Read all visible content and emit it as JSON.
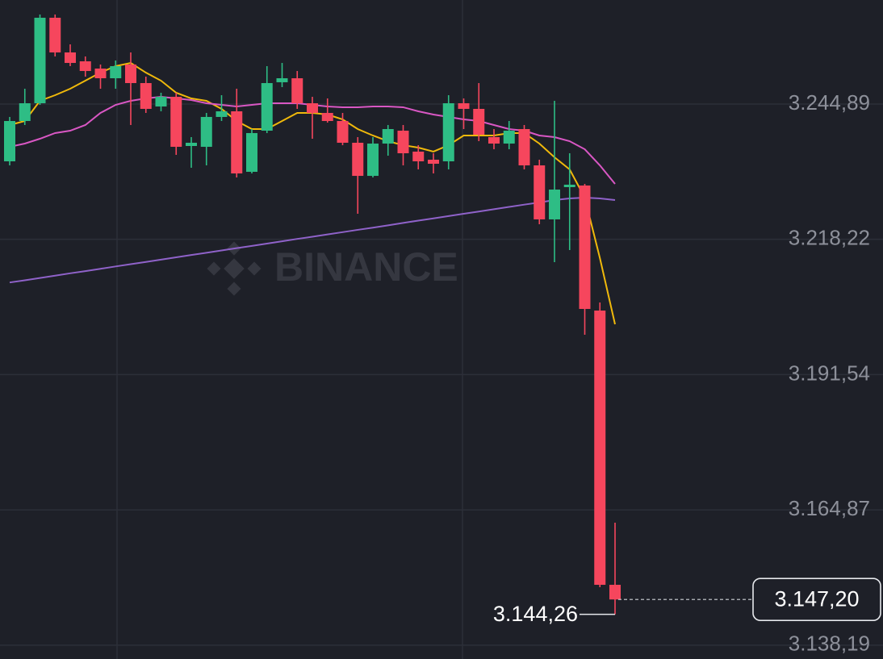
{
  "chart_data": {
    "type": "candlestick",
    "watermark": "BINANCE",
    "up_color": "#2ebd85",
    "down_color": "#f6465d",
    "grid": true,
    "ylim": [
      3135.46,
      3265.41
    ],
    "yticks": [
      {
        "value": 3244.89,
        "label": "3.244,89"
      },
      {
        "value": 3218.22,
        "label": "3.218,22"
      },
      {
        "value": 3191.54,
        "label": "3.191,54"
      },
      {
        "value": 3164.87,
        "label": "3.164,87"
      },
      {
        "value": 3138.19,
        "label": "3.138,19"
      }
    ],
    "candles": {
      "open": [
        3233.6,
        3241.55,
        3245.05,
        3261.91,
        3255.07,
        3253.32,
        3251.89,
        3249.98,
        3252.69,
        3249.03,
        3244.41,
        3246.32,
        3236.62,
        3236.46,
        3242.35,
        3243.46,
        3231.53,
        3239.64,
        3249.19,
        3249.98,
        3245.05,
        3243.14,
        3241.55,
        3237.26,
        3230.73,
        3237.1,
        3239.64,
        3235.51,
        3233.92,
        3233.6,
        3245.05,
        3243.94,
        3238.37,
        3237.1,
        3239.96,
        3232.8,
        3222.15,
        3228.51,
        3228.83,
        3204.17,
        3150.09
      ],
      "high": [
        3242.35,
        3247.91,
        3262.55,
        3262.55,
        3256.66,
        3254.28,
        3252.69,
        3253.48,
        3255.07,
        3250.3,
        3247.12,
        3247.12,
        3238.37,
        3243.14,
        3246.64,
        3247.91,
        3239.96,
        3252.37,
        3253.0,
        3251.41,
        3246.32,
        3246.0,
        3243.14,
        3238.37,
        3238.37,
        3240.76,
        3240.76,
        3236.78,
        3235.19,
        3246.64,
        3246.0,
        3249.03,
        3239.96,
        3241.55,
        3240.76,
        3233.92,
        3245.53,
        3235.19,
        3229.14,
        3205.76,
        3162.34
      ],
      "low": [
        3232.8,
        3240.76,
        3244.73,
        3254.28,
        3252.37,
        3250.3,
        3247.91,
        3247.91,
        3240.76,
        3243.14,
        3243.46,
        3234.87,
        3232.33,
        3232.8,
        3241.55,
        3230.42,
        3231.21,
        3239.17,
        3248.23,
        3243.94,
        3238.05,
        3241.23,
        3236.78,
        3223.26,
        3230.42,
        3234.71,
        3232.8,
        3232.01,
        3231.21,
        3232.01,
        3239.96,
        3237.57,
        3235.98,
        3235.98,
        3232.01,
        3221.19,
        3213.72,
        3216.1,
        3199.4,
        3149.61,
        3144.26
      ],
      "close": [
        3241.55,
        3245.05,
        3261.91,
        3255.07,
        3253.0,
        3251.41,
        3249.98,
        3252.37,
        3249.03,
        3243.94,
        3246.32,
        3236.46,
        3237.26,
        3242.35,
        3243.46,
        3231.21,
        3239.17,
        3249.03,
        3249.98,
        3245.05,
        3243.14,
        3241.55,
        3237.26,
        3230.73,
        3237.1,
        3239.96,
        3235.19,
        3233.6,
        3233.12,
        3245.05,
        3243.94,
        3238.85,
        3237.1,
        3239.64,
        3232.8,
        3222.15,
        3228.03,
        3228.99,
        3204.49,
        3150.09,
        3147.2
      ]
    },
    "moving_averages": [
      {
        "color": "#f0b90b",
        "values": [
          3240.76,
          3241.55,
          3245.53,
          3246.64,
          3247.91,
          3249.5,
          3251.09,
          3252.37,
          3253.0,
          3251.09,
          3249.5,
          3247.12,
          3246.0,
          3245.53,
          3243.94,
          3241.55,
          3239.96,
          3239.96,
          3241.55,
          3243.14,
          3243.14,
          3242.82,
          3241.87,
          3239.96,
          3238.69,
          3237.57,
          3236.78,
          3236.3,
          3235.51,
          3236.78,
          3238.69,
          3238.69,
          3238.69,
          3239.17,
          3239.17,
          3237.1,
          3234.39,
          3232.01,
          3226.44,
          3214.51,
          3201.47
        ]
      },
      {
        "color": "#d957c4",
        "values": [
          3236.46,
          3237.1,
          3238.05,
          3239.17,
          3239.64,
          3240.76,
          3243.14,
          3244.73,
          3245.53,
          3246.0,
          3246.32,
          3246.0,
          3245.69,
          3245.05,
          3244.73,
          3244.41,
          3244.73,
          3245.05,
          3245.05,
          3245.05,
          3244.73,
          3244.41,
          3244.26,
          3244.26,
          3244.41,
          3244.41,
          3244.26,
          3243.46,
          3242.82,
          3242.35,
          3241.87,
          3241.55,
          3240.76,
          3239.96,
          3239.64,
          3238.69,
          3238.37,
          3237.57,
          3235.98,
          3232.8,
          3229.14
        ]
      },
      {
        "color": "#8f62c9",
        "values": [
          3209.71,
          3210.14,
          3210.6,
          3211.06,
          3211.52,
          3211.95,
          3212.41,
          3212.87,
          3213.32,
          3213.76,
          3214.21,
          3214.67,
          3215.13,
          3215.56,
          3216.02,
          3216.48,
          3216.91,
          3217.37,
          3217.83,
          3218.3,
          3218.73,
          3219.19,
          3219.63,
          3220.09,
          3220.52,
          3220.98,
          3221.45,
          3221.91,
          3222.34,
          3222.8,
          3223.26,
          3223.7,
          3224.15,
          3224.61,
          3225.06,
          3225.49,
          3225.96,
          3226.28,
          3226.44,
          3226.28,
          3225.96
        ]
      }
    ],
    "last_price": {
      "value": 3147.2,
      "label": "3.147,20"
    },
    "lowest": {
      "value": 3144.26,
      "label": "3.144,26"
    }
  }
}
